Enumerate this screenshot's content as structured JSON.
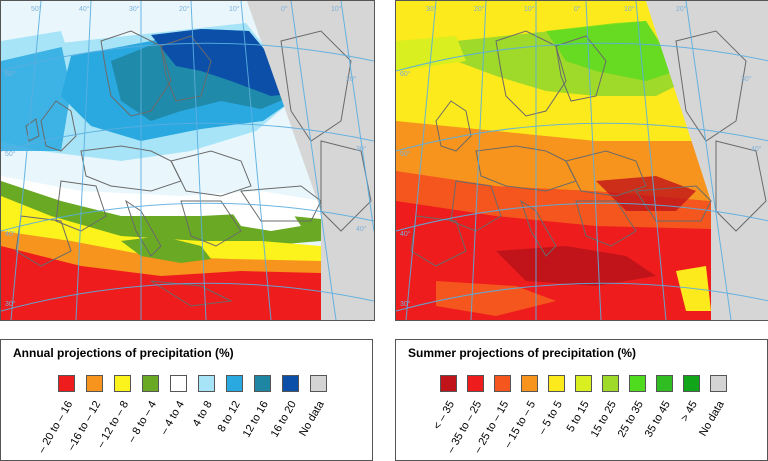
{
  "maps": {
    "annual": {
      "name": "annual-projection-map"
    },
    "summer": {
      "name": "summer-projection-map"
    }
  },
  "graticule_labels": {
    "annual": [
      "50°",
      "40°",
      "30°",
      "20°",
      "10°",
      "0°",
      "10°",
      "20°",
      "30°",
      "40°",
      "60°",
      "50°",
      "40°",
      "30°"
    ],
    "summer": [
      "30°",
      "20°",
      "10°",
      "0°",
      "10°",
      "20°",
      "30°",
      "40°",
      "60°",
      "50°",
      "40°",
      "30°"
    ]
  },
  "colors": {
    "no_data": "#d4d4d4",
    "country_border": "#6a6a6a",
    "graticule": "#5aaee0"
  },
  "legends": {
    "annual": {
      "title": "Annual projections of precipitation (%)",
      "items": [
        {
          "label": "– 20 to – 16",
          "color": "#ee1c1c"
        },
        {
          "label": "–16 to – 12",
          "color": "#f7941d"
        },
        {
          "label": "– 12 to – 8",
          "color": "#fcf21c"
        },
        {
          "label": "– 8 to – 4",
          "color": "#6aa924"
        },
        {
          "label": "– 4 to 4",
          "color": "#ffffff"
        },
        {
          "label": "4 to 8",
          "color": "#a8e4f7"
        },
        {
          "label": "8 to 12",
          "color": "#2aa9e0"
        },
        {
          "label": "12 to 16",
          "color": "#1e86a3"
        },
        {
          "label": "16 to 20",
          "color": "#0b4fa8"
        },
        {
          "label": "No data",
          "color": "#d4d4d4"
        }
      ]
    },
    "summer": {
      "title": "Summer projections of precipitation (%)",
      "items": [
        {
          "label": "< – 35",
          "color": "#c1141a"
        },
        {
          "label": "– 35 to – 25",
          "color": "#ee1c1c"
        },
        {
          "label": "– 25 to – 15",
          "color": "#f4561e"
        },
        {
          "label": "– 15 to – 5",
          "color": "#f7941d"
        },
        {
          "label": "– 5 to 5",
          "color": "#fcea1c"
        },
        {
          "label": "5 to 15",
          "color": "#d9ef1f"
        },
        {
          "label": "15 to 25",
          "color": "#9fd92a"
        },
        {
          "label": "25 to 35",
          "color": "#4fdc1e"
        },
        {
          "label": "35 to 45",
          "color": "#2fbd22"
        },
        {
          "label": "> 45",
          "color": "#11a61a"
        },
        {
          "label": "No data",
          "color": "#d4d4d4"
        }
      ]
    }
  }
}
